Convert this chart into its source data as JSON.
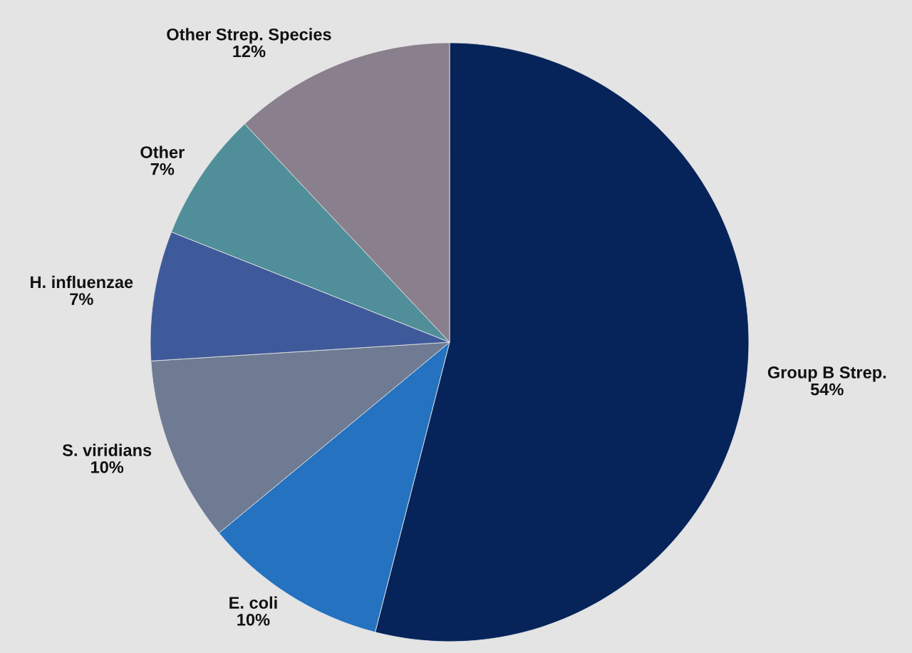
{
  "chart_data": {
    "type": "pie",
    "categories": [
      "Group B Strep.",
      "E. coli",
      "S. viridians",
      "H. influenzae",
      "Other",
      "Other Strep. Species"
    ],
    "values": [
      54,
      10,
      10,
      7,
      7,
      12
    ],
    "colors": [
      "#06245a",
      "#2472c0",
      "#6e7b93",
      "#3f5a9a",
      "#508f9a",
      "#8a7f8c"
    ],
    "value_labels": [
      "54%",
      "10%",
      "10%",
      "7%",
      "7%",
      "12%"
    ],
    "legend": false
  }
}
